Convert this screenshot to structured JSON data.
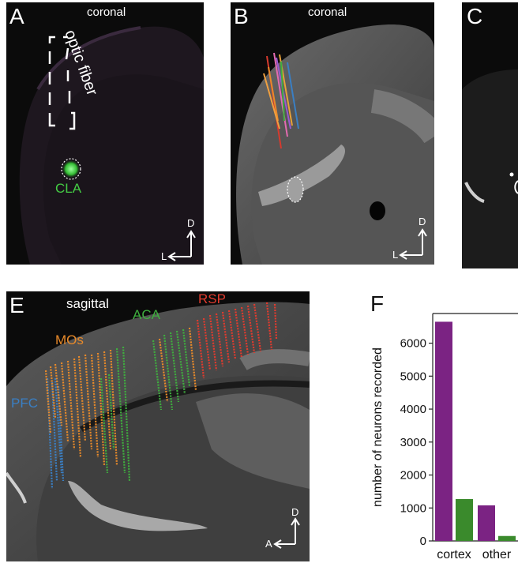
{
  "panels": {
    "A": {
      "label": "A",
      "view": "coronal",
      "annotation": "optic fiber",
      "region": "CLA",
      "axis_v": "D",
      "axis_h": "L"
    },
    "B": {
      "label": "B",
      "view": "coronal",
      "axis_v": "D",
      "axis_h": "L"
    },
    "C": {
      "label": "C"
    },
    "E": {
      "label": "E",
      "view": "sagittal",
      "regions": [
        "PFC",
        "MOs",
        "ACA",
        "RSP"
      ],
      "axis_v": "D",
      "axis_h": "A"
    },
    "F": {
      "label": "F"
    }
  },
  "colors": {
    "PFC": "#3a7fc4",
    "MOs": "#e88a2a",
    "ACA": "#3fae3f",
    "RSP": "#e23b2e",
    "purple": "#7b2383",
    "green": "#3a8a2c",
    "cla_green": "#44cc44"
  },
  "chart_data": {
    "type": "bar",
    "categories": [
      "cortex",
      "other"
    ],
    "series": [
      {
        "values": [
          6650,
          1080
        ]
      },
      {
        "values": [
          1270,
          150
        ]
      }
    ],
    "ylabel": "number of neurons recorded",
    "yticks": [
      0,
      1000,
      2000,
      3000,
      4000,
      5000,
      6000
    ],
    "ylim": [
      0,
      6900
    ]
  }
}
